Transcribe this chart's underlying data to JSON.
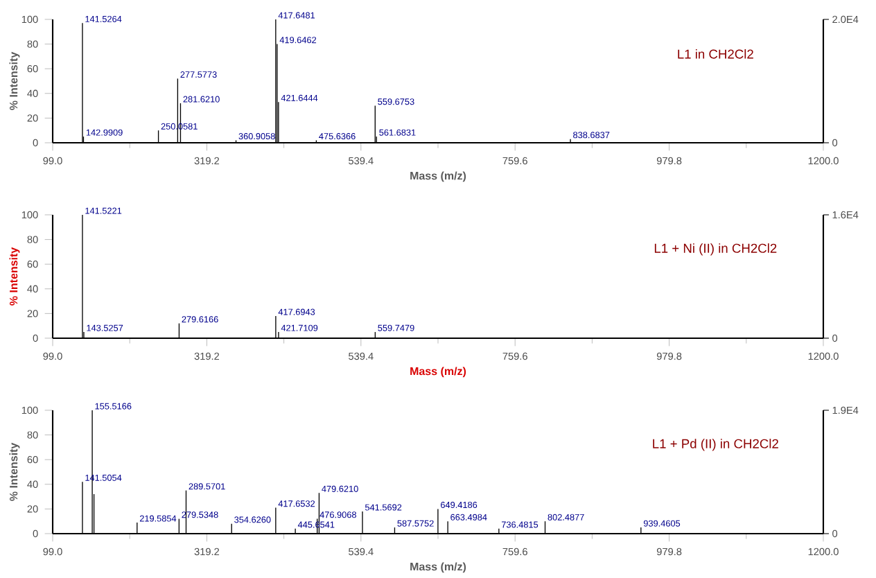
{
  "chart_data": [
    {
      "type": "bar",
      "title": "L1 in CH2Cl2",
      "xlabel": "Mass (m/z)",
      "ylabel": "% Intensity",
      "color": "#000000",
      "x": [
        141.5264,
        142.9909,
        250.0581,
        277.5773,
        281.621,
        360.9058,
        417.6481,
        419.6462,
        421.6444,
        475.6366,
        559.6753,
        561.6831,
        838.6837
      ],
      "values": [
        97,
        5,
        10,
        52,
        32,
        2,
        100,
        80,
        33,
        2,
        30,
        5,
        3
      ],
      "annotations": [
        {
          "text": "141.5264",
          "x": 141.5264,
          "y": 97
        },
        {
          "text": "142.9909",
          "x": 142.9909,
          "y": 5
        },
        {
          "text": "250.0581",
          "x": 250.0581,
          "y": 10
        },
        {
          "text": "277.5773",
          "x": 277.5773,
          "y": 52
        },
        {
          "text": "281.6210",
          "x": 281.621,
          "y": 32
        },
        {
          "text": "360.9058",
          "x": 360.9058,
          "y": 2
        },
        {
          "text": "417.6481",
          "x": 417.6481,
          "y": 100
        },
        {
          "text": "419.6462",
          "x": 419.6462,
          "y": 80
        },
        {
          "text": "421.6444",
          "x": 421.6444,
          "y": 33
        },
        {
          "text": "475.6366",
          "x": 475.6366,
          "y": 2
        },
        {
          "text": "559.6753",
          "x": 559.6753,
          "y": 30
        },
        {
          "text": "561.6831",
          "x": 561.6831,
          "y": 5
        },
        {
          "text": "838.6837",
          "x": 838.6837,
          "y": 3
        }
      ],
      "xlim": [
        99.0,
        1200.0
      ],
      "xticks": [
        {
          "value": 99.0,
          "label": "99.0"
        },
        {
          "value": 319.2,
          "label": "319.2"
        },
        {
          "value": 539.4,
          "label": "539.4"
        },
        {
          "value": 759.6,
          "label": "759.6"
        },
        {
          "value": 979.8,
          "label": "979.8"
        },
        {
          "value": 1200.0,
          "label": "1200.0"
        }
      ],
      "ylim": [
        0,
        100
      ],
      "yticks": [
        0,
        20,
        40,
        60,
        80,
        100
      ],
      "y2lim": [
        0,
        20000
      ],
      "y2ticks": [
        {
          "value": 0,
          "label": "0"
        },
        {
          "value": 20000,
          "label": "2.0E4"
        }
      ]
    },
    {
      "type": "bar",
      "title": "L1 + Ni (II) in CH2Cl2",
      "xlabel": "Mass (m/z)",
      "ylabel": "% Intensity",
      "color": "#000000",
      "x": [
        141.5221,
        143.5257,
        279.6166,
        417.6943,
        421.7109,
        559.7479
      ],
      "values": [
        100,
        5,
        12,
        18,
        5,
        5
      ],
      "annotations": [
        {
          "text": "141.5221",
          "x": 141.5221,
          "y": 100
        },
        {
          "text": "143.5257",
          "x": 143.5257,
          "y": 5
        },
        {
          "text": "279.6166",
          "x": 279.6166,
          "y": 12
        },
        {
          "text": "417.6943",
          "x": 417.6943,
          "y": 18
        },
        {
          "text": "421.7109",
          "x": 421.7109,
          "y": 5
        },
        {
          "text": "559.7479",
          "x": 559.7479,
          "y": 5
        }
      ],
      "xlim": [
        99.0,
        1200.0
      ],
      "xticks": [
        {
          "value": 99.0,
          "label": "99.0"
        },
        {
          "value": 319.2,
          "label": "319.2"
        },
        {
          "value": 539.4,
          "label": "539.4"
        },
        {
          "value": 759.6,
          "label": "759.6"
        },
        {
          "value": 979.8,
          "label": "979.8"
        },
        {
          "value": 1200.0,
          "label": "1200.0"
        }
      ],
      "ylim": [
        0,
        100
      ],
      "yticks": [
        0,
        20,
        40,
        60,
        80,
        100
      ],
      "y2lim": [
        0,
        16000
      ],
      "y2ticks": [
        {
          "value": 0,
          "label": "0"
        },
        {
          "value": 16000,
          "label": "1.6E4"
        }
      ]
    },
    {
      "type": "bar",
      "title": "L1 + Pd (II) in CH2Cl2",
      "xlabel": "Mass (m/z)",
      "ylabel": "% Intensity",
      "color": "#000000",
      "x": [
        141.5054,
        155.5166,
        158.0,
        219.5854,
        279.5348,
        289.5701,
        354.626,
        417.6532,
        445.6541,
        476.9068,
        479.621,
        541.5692,
        587.5752,
        649.4186,
        663.4984,
        736.4815,
        802.4877,
        939.4605
      ],
      "values": [
        42,
        100,
        32,
        9,
        12,
        35,
        8,
        21,
        4,
        12,
        33,
        18,
        5,
        20,
        10,
        4,
        10,
        5
      ],
      "annotations": [
        {
          "text": "141.5054",
          "x": 141.5054,
          "y": 42
        },
        {
          "text": "155.5166",
          "x": 155.5166,
          "y": 100
        },
        {
          "text": "219.5854",
          "x": 219.5854,
          "y": 9
        },
        {
          "text": "279.5348",
          "x": 279.5348,
          "y": 12
        },
        {
          "text": "289.5701",
          "x": 289.5701,
          "y": 35
        },
        {
          "text": "354.6260",
          "x": 354.626,
          "y": 8
        },
        {
          "text": "417.6532",
          "x": 417.6532,
          "y": 21
        },
        {
          "text": "445.6541",
          "x": 445.6541,
          "y": 4
        },
        {
          "text": "476.9068",
          "x": 476.9068,
          "y": 12
        },
        {
          "text": "479.6210",
          "x": 479.621,
          "y": 33
        },
        {
          "text": "541.5692",
          "x": 541.5692,
          "y": 18
        },
        {
          "text": "587.5752",
          "x": 587.5752,
          "y": 5
        },
        {
          "text": "649.4186",
          "x": 649.4186,
          "y": 20
        },
        {
          "text": "663.4984",
          "x": 663.4984,
          "y": 10
        },
        {
          "text": "736.4815",
          "x": 736.4815,
          "y": 4
        },
        {
          "text": "802.4877",
          "x": 802.4877,
          "y": 10
        },
        {
          "text": "939.4605",
          "x": 939.4605,
          "y": 5
        }
      ],
      "xlim": [
        99.0,
        1200.0
      ],
      "xticks": [
        {
          "value": 99.0,
          "label": "99.0"
        },
        {
          "value": 319.2,
          "label": "319.2"
        },
        {
          "value": 539.4,
          "label": "539.4"
        },
        {
          "value": 759.6,
          "label": "759.6"
        },
        {
          "value": 979.8,
          "label": "979.8"
        },
        {
          "value": 1200.0,
          "label": "1200.0"
        }
      ],
      "ylim": [
        0,
        100
      ],
      "yticks": [
        0,
        20,
        40,
        60,
        80,
        100
      ],
      "y2lim": [
        0,
        19000
      ],
      "y2ticks": [
        {
          "value": 0,
          "label": "0"
        },
        {
          "value": 19000,
          "label": "1.9E4"
        }
      ]
    }
  ]
}
